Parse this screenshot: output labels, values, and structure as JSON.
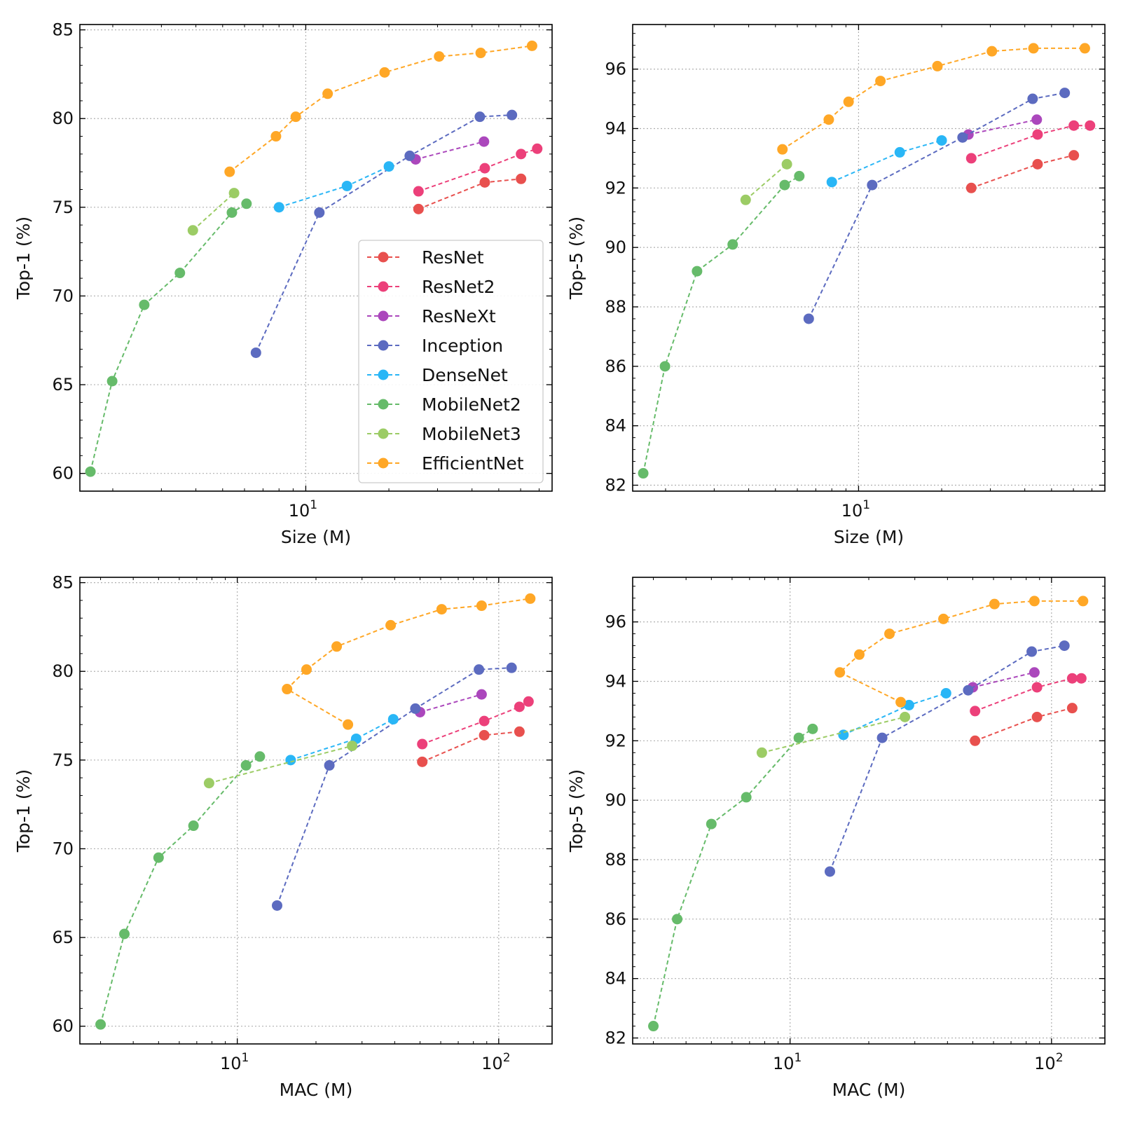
{
  "chart_data": [
    {
      "type": "line",
      "panel": "top-left",
      "xlabel": "Size (M)",
      "ylabel": "Top-1 (%)",
      "xscale": "log",
      "xlim": [
        1.52,
        78
      ],
      "ylim": [
        59.0,
        85.3
      ],
      "y_ticks": [
        60,
        65,
        70,
        75,
        80,
        85
      ],
      "x_ticks": [
        {
          "value": 10,
          "base": "10",
          "exp": "1"
        }
      ],
      "grid": true,
      "show_legend": true,
      "legend_position": "center-right",
      "series": [
        {
          "name": "ResNet",
          "color": "#e8504e",
          "x": [
            25.6,
            44.5,
            60.2
          ],
          "y": [
            74.9,
            76.4,
            76.6
          ]
        },
        {
          "name": "ResNet2",
          "color": "#ec407a",
          "x": [
            25.6,
            44.5,
            60.2,
            68.9
          ],
          "y": [
            75.9,
            77.2,
            78.0,
            78.3
          ]
        },
        {
          "name": "ResNeXt",
          "color": "#ab47bc",
          "x": [
            25.0,
            44.2
          ],
          "y": [
            77.7,
            78.7
          ]
        },
        {
          "name": "Inception",
          "color": "#5c6bc0",
          "x": [
            6.6,
            11.2,
            23.8,
            42.7,
            55.8
          ],
          "y": [
            66.8,
            74.7,
            77.9,
            80.1,
            80.2
          ]
        },
        {
          "name": "DenseNet",
          "color": "#29b6f6",
          "x": [
            8.0,
            14.1,
            20.0
          ],
          "y": [
            75.0,
            76.2,
            77.3
          ]
        },
        {
          "name": "MobileNet2",
          "color": "#66bb6a",
          "x": [
            1.66,
            1.99,
            2.6,
            3.5,
            5.4,
            6.1
          ],
          "y": [
            60.1,
            65.2,
            69.5,
            71.3,
            74.7,
            75.2
          ]
        },
        {
          "name": "MobileNet3",
          "color": "#9ccc65",
          "x": [
            3.9,
            5.5
          ],
          "y": [
            73.7,
            75.8
          ]
        },
        {
          "name": "EfficientNet",
          "color": "#ffa726",
          "x": [
            5.3,
            7.8,
            9.2,
            12.0,
            19.3,
            30.4,
            43.0,
            66.0
          ],
          "y": [
            77.0,
            79.0,
            80.1,
            81.4,
            82.6,
            83.5,
            83.7,
            84.1
          ]
        }
      ]
    },
    {
      "type": "line",
      "panel": "top-right",
      "xlabel": "Size (M)",
      "ylabel": "Top-5 (%)",
      "xscale": "log",
      "xlim": [
        1.52,
        78
      ],
      "ylim": [
        81.8,
        97.5
      ],
      "y_ticks": [
        82,
        84,
        86,
        88,
        90,
        92,
        94,
        96
      ],
      "x_ticks": [
        {
          "value": 10,
          "base": "10",
          "exp": "1"
        }
      ],
      "grid": true,
      "show_legend": false,
      "series": [
        {
          "name": "ResNet",
          "color": "#e8504e",
          "x": [
            25.6,
            44.5,
            60.2
          ],
          "y": [
            92.0,
            92.8,
            93.1
          ]
        },
        {
          "name": "ResNet2",
          "color": "#ec407a",
          "x": [
            25.6,
            44.5,
            60.2,
            68.9
          ],
          "y": [
            93.0,
            93.8,
            94.1,
            94.1
          ]
        },
        {
          "name": "ResNeXt",
          "color": "#ab47bc",
          "x": [
            25.0,
            44.2
          ],
          "y": [
            93.8,
            94.3
          ]
        },
        {
          "name": "Inception",
          "color": "#5c6bc0",
          "x": [
            6.6,
            11.2,
            23.8,
            42.7,
            55.8
          ],
          "y": [
            87.6,
            92.1,
            93.7,
            95.0,
            95.2
          ]
        },
        {
          "name": "DenseNet",
          "color": "#29b6f6",
          "x": [
            8.0,
            14.1,
            20.0
          ],
          "y": [
            92.2,
            93.2,
            93.6
          ]
        },
        {
          "name": "MobileNet2",
          "color": "#66bb6a",
          "x": [
            1.66,
            1.99,
            2.6,
            3.5,
            5.4,
            6.1
          ],
          "y": [
            82.4,
            86.0,
            89.2,
            90.1,
            92.1,
            92.4
          ]
        },
        {
          "name": "MobileNet3",
          "color": "#9ccc65",
          "x": [
            3.9,
            5.5
          ],
          "y": [
            91.6,
            92.8
          ]
        },
        {
          "name": "EfficientNet",
          "color": "#ffa726",
          "x": [
            5.3,
            7.8,
            9.2,
            12.0,
            19.3,
            30.4,
            43.0,
            66.0
          ],
          "y": [
            93.3,
            94.3,
            94.9,
            95.6,
            96.1,
            96.6,
            96.7,
            96.7
          ]
        }
      ]
    },
    {
      "type": "line",
      "panel": "bottom-left",
      "xlabel": "MAC (M)",
      "ylabel": "Top-1 (%)",
      "xscale": "log",
      "xlim": [
        2.5,
        160
      ],
      "ylim": [
        59.0,
        85.3
      ],
      "y_ticks": [
        60,
        65,
        70,
        75,
        80,
        85
      ],
      "x_ticks": [
        {
          "value": 10,
          "base": "10",
          "exp": "1"
        },
        {
          "value": 100,
          "base": "10",
          "exp": "2"
        }
      ],
      "grid": true,
      "show_legend": false,
      "series": [
        {
          "name": "ResNet",
          "color": "#e8504e",
          "x": [
            51,
            88,
            120
          ],
          "y": [
            74.9,
            76.4,
            76.6
          ]
        },
        {
          "name": "ResNet2",
          "color": "#ec407a",
          "x": [
            51,
            88,
            120,
            130
          ],
          "y": [
            75.9,
            77.2,
            78.0,
            78.3
          ]
        },
        {
          "name": "ResNeXt",
          "color": "#ab47bc",
          "x": [
            50,
            86
          ],
          "y": [
            77.7,
            78.7
          ]
        },
        {
          "name": "Inception",
          "color": "#5c6bc0",
          "x": [
            14.2,
            22.5,
            48,
            84,
            112
          ],
          "y": [
            66.8,
            74.7,
            77.9,
            80.1,
            80.2
          ]
        },
        {
          "name": "DenseNet",
          "color": "#29b6f6",
          "x": [
            16.0,
            28.5,
            39.5
          ],
          "y": [
            75.0,
            76.2,
            77.3
          ]
        },
        {
          "name": "MobileNet2",
          "color": "#66bb6a",
          "x": [
            3.0,
            3.7,
            5.0,
            6.8,
            10.8,
            12.2
          ],
          "y": [
            60.1,
            65.2,
            69.5,
            71.3,
            74.7,
            75.2
          ]
        },
        {
          "name": "MobileNet3",
          "color": "#9ccc65",
          "x": [
            7.8,
            27.5
          ],
          "y": [
            73.7,
            75.8
          ]
        },
        {
          "name": "EfficientNet",
          "color": "#ffa726",
          "x": [
            26.5,
            15.5,
            18.4,
            24.0,
            38.6,
            60.5,
            86.0,
            132.0
          ],
          "y": [
            77.0,
            79.0,
            80.1,
            81.4,
            82.6,
            83.5,
            83.7,
            84.1
          ]
        }
      ]
    },
    {
      "type": "line",
      "panel": "bottom-right",
      "xlabel": "MAC (M)",
      "ylabel": "Top-5 (%)",
      "xscale": "log",
      "xlim": [
        2.5,
        160
      ],
      "ylim": [
        81.8,
        97.5
      ],
      "y_ticks": [
        82,
        84,
        86,
        88,
        90,
        92,
        94,
        96
      ],
      "x_ticks": [
        {
          "value": 10,
          "base": "10",
          "exp": "1"
        },
        {
          "value": 100,
          "base": "10",
          "exp": "2"
        }
      ],
      "grid": true,
      "show_legend": false,
      "series": [
        {
          "name": "ResNet",
          "color": "#e8504e",
          "x": [
            51,
            88,
            120
          ],
          "y": [
            92.0,
            92.8,
            93.1
          ]
        },
        {
          "name": "ResNet2",
          "color": "#ec407a",
          "x": [
            51,
            88,
            120,
            130
          ],
          "y": [
            93.0,
            93.8,
            94.1,
            94.1
          ]
        },
        {
          "name": "ResNeXt",
          "color": "#ab47bc",
          "x": [
            50,
            86
          ],
          "y": [
            93.8,
            94.3
          ]
        },
        {
          "name": "Inception",
          "color": "#5c6bc0",
          "x": [
            14.2,
            22.5,
            48,
            84,
            112
          ],
          "y": [
            87.6,
            92.1,
            93.7,
            95.0,
            95.2
          ]
        },
        {
          "name": "DenseNet",
          "color": "#29b6f6",
          "x": [
            16.0,
            28.5,
            39.5
          ],
          "y": [
            92.2,
            93.2,
            93.6
          ]
        },
        {
          "name": "MobileNet2",
          "color": "#66bb6a",
          "x": [
            3.0,
            3.7,
            5.0,
            6.8,
            10.8,
            12.2
          ],
          "y": [
            82.4,
            86.0,
            89.2,
            90.1,
            92.1,
            92.4
          ]
        },
        {
          "name": "MobileNet3",
          "color": "#9ccc65",
          "x": [
            7.8,
            27.5
          ],
          "y": [
            91.6,
            92.8
          ]
        },
        {
          "name": "EfficientNet",
          "color": "#ffa726",
          "x": [
            26.5,
            15.5,
            18.4,
            24.0,
            38.6,
            60.5,
            86.0,
            132.0
          ],
          "y": [
            93.3,
            94.3,
            94.9,
            95.6,
            96.1,
            96.6,
            96.7,
            96.7
          ]
        }
      ]
    }
  ]
}
